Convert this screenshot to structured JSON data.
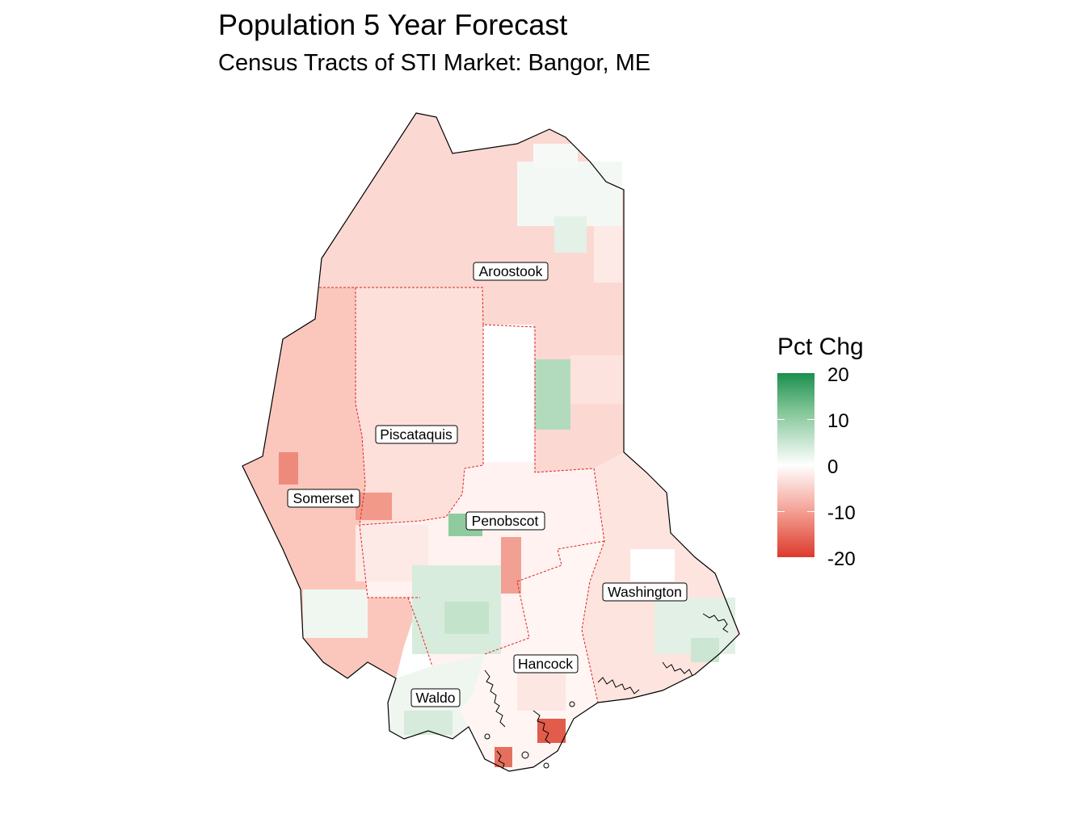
{
  "title": "Population 5 Year Forecast",
  "subtitle": "Census Tracts of STI Market: Bangor, ME",
  "legend": {
    "title": "Pct Chg",
    "ticks": [
      "20",
      "10",
      "0",
      "-10",
      "-20"
    ],
    "colors": {
      "high": "#1b8f4e",
      "mid": "#ffffff",
      "low": "#dc3a2b"
    }
  },
  "counties": [
    {
      "name": "Aroostook",
      "fill": "#fcd8d2"
    },
    {
      "name": "Piscataquis",
      "fill": "#fde0da"
    },
    {
      "name": "Somerset",
      "fill": "#fbc7bd"
    },
    {
      "name": "Penobscot",
      "fill": "#fff2f0"
    },
    {
      "name": "Washington",
      "fill": "#fde4df"
    },
    {
      "name": "Hancock",
      "fill": "#fff6f4"
    },
    {
      "name": "Waldo",
      "fill": "#eef6ef"
    }
  ]
}
